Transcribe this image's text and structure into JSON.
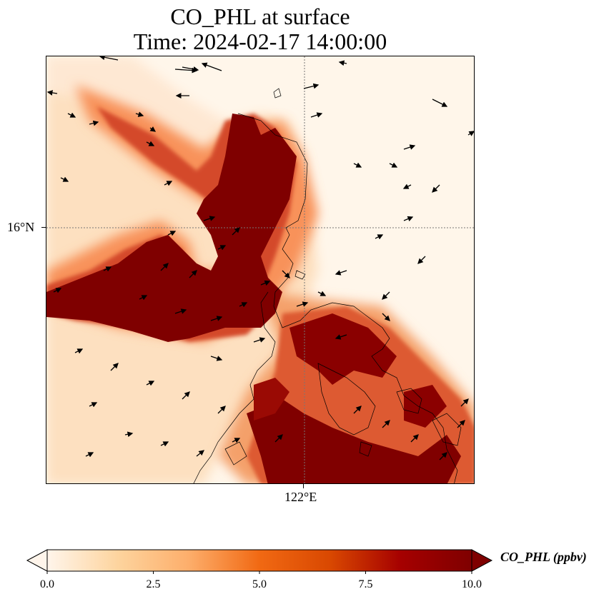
{
  "title_line1": "CO_PHL at surface",
  "title_line2": "Time: 2024-02-17 14:00:00",
  "lat_tick_label": "16°N",
  "lon_tick_label": "122°E",
  "colorbar": {
    "label": "CO_PHL (ppbv)",
    "ticks": [
      "0.0",
      "2.5",
      "5.0",
      "7.5",
      "10.0"
    ],
    "min": 0,
    "max": 10,
    "extend": "both",
    "colormap": [
      "#fff5eb",
      "#fdd49e",
      "#fdae6b",
      "#f16913",
      "#d94801",
      "#a50000",
      "#7f0000"
    ]
  }
}
